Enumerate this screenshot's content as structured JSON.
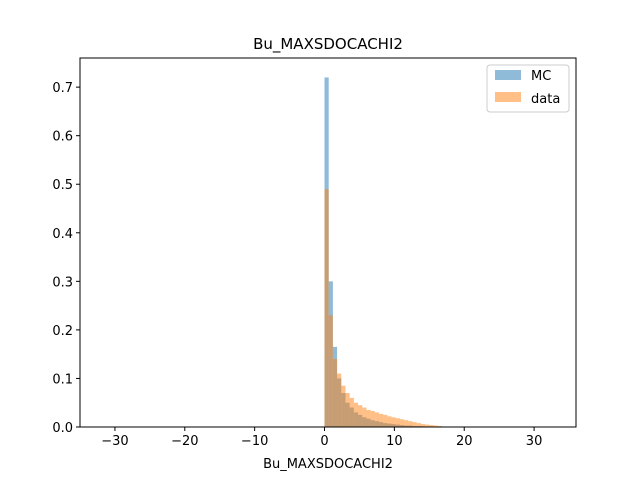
{
  "chart_data": {
    "type": "bar",
    "title": "Bu_MAXSDOCACHI2",
    "xlabel": "Bu_MAXSDOCACHI2",
    "ylabel": "",
    "xlim": [
      -35,
      36
    ],
    "ylim": [
      0,
      0.76
    ],
    "xticks": [
      -30,
      -20,
      -10,
      0,
      10,
      20,
      30
    ],
    "yticks": [
      0.0,
      0.1,
      0.2,
      0.3,
      0.4,
      0.5,
      0.6,
      0.7
    ],
    "ytick_labels": [
      "0.0",
      "0.1",
      "0.2",
      "0.3",
      "0.4",
      "0.5",
      "0.6",
      "0.7"
    ],
    "grid": false,
    "legend_position": "top-right",
    "bin_width": 0.6,
    "series": [
      {
        "name": "MC",
        "color": "#1f77b4",
        "alpha": 0.5,
        "bins": [
          [
            0.0,
            0.72
          ],
          [
            0.6,
            0.3
          ],
          [
            1.2,
            0.165
          ],
          [
            1.8,
            0.1
          ],
          [
            2.4,
            0.07
          ],
          [
            3.0,
            0.05
          ],
          [
            3.6,
            0.04
          ],
          [
            4.2,
            0.03
          ],
          [
            4.8,
            0.025
          ],
          [
            5.4,
            0.02
          ],
          [
            6.0,
            0.017
          ],
          [
            6.6,
            0.014
          ],
          [
            7.2,
            0.012
          ],
          [
            7.8,
            0.01
          ],
          [
            8.4,
            0.008
          ],
          [
            9.0,
            0.007
          ],
          [
            9.6,
            0.006
          ],
          [
            10.2,
            0.005
          ],
          [
            10.8,
            0.004
          ],
          [
            11.4,
            0.003
          ],
          [
            12.0,
            0.003
          ],
          [
            12.6,
            0.002
          ],
          [
            13.2,
            0.002
          ],
          [
            13.8,
            0.0015
          ],
          [
            14.4,
            0.001
          ]
        ]
      },
      {
        "name": "data",
        "color": "#ff7f0e",
        "alpha": 0.5,
        "bins": [
          [
            0.0,
            0.49
          ],
          [
            0.6,
            0.23
          ],
          [
            1.2,
            0.14
          ],
          [
            1.8,
            0.11
          ],
          [
            2.4,
            0.085
          ],
          [
            3.0,
            0.07
          ],
          [
            3.6,
            0.06
          ],
          [
            4.2,
            0.05
          ],
          [
            4.8,
            0.045
          ],
          [
            5.4,
            0.04
          ],
          [
            6.0,
            0.035
          ],
          [
            6.6,
            0.033
          ],
          [
            7.2,
            0.03
          ],
          [
            7.8,
            0.027
          ],
          [
            8.4,
            0.025
          ],
          [
            9.0,
            0.022
          ],
          [
            9.6,
            0.02
          ],
          [
            10.2,
            0.018
          ],
          [
            10.8,
            0.016
          ],
          [
            11.4,
            0.014
          ],
          [
            12.0,
            0.012
          ],
          [
            12.6,
            0.01
          ],
          [
            13.2,
            0.008
          ],
          [
            13.8,
            0.006
          ],
          [
            14.4,
            0.005
          ],
          [
            15.0,
            0.004
          ],
          [
            15.6,
            0.003
          ],
          [
            16.2,
            0.002
          ]
        ]
      }
    ]
  }
}
